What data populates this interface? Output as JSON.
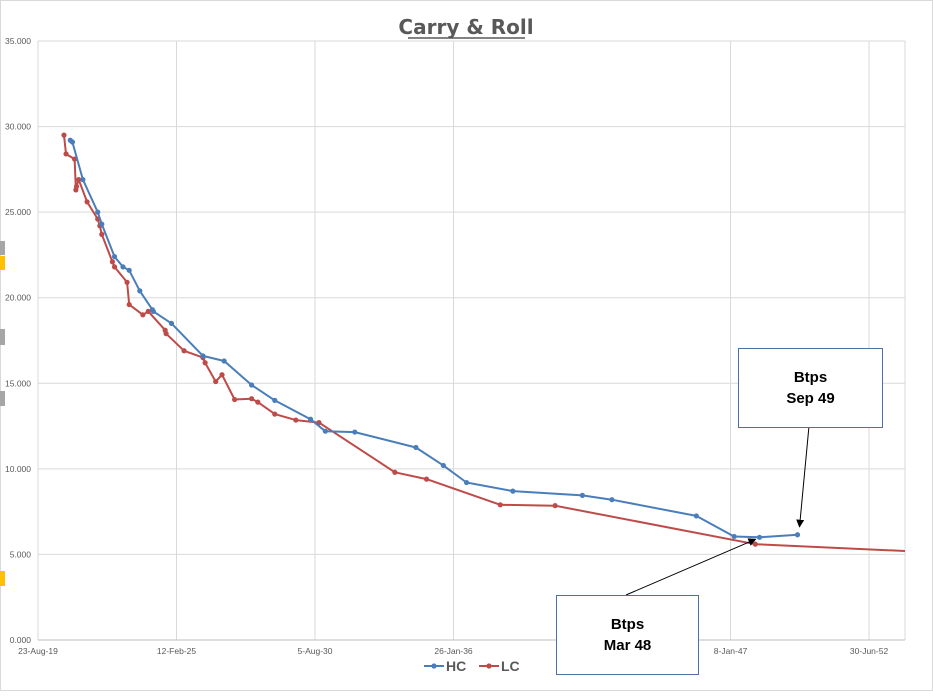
{
  "chart_data": {
    "type": "line",
    "title": "Carry & Roll",
    "xlabel": "",
    "ylabel": "",
    "x_axis_type": "date",
    "xlim": [
      "2019-08-23",
      "2053-12-01"
    ],
    "ylim": [
      0,
      35
    ],
    "x_tick_labels": [
      "23-Aug-19",
      "12-Feb-25",
      "5-Aug-30",
      "26-Jan-36",
      "8-Jan-47",
      "30-Jun-52"
    ],
    "x_tick_dates": [
      "2019-08-23",
      "2025-02-12",
      "2030-08-05",
      "2036-01-26",
      "2047-01-08",
      "2052-06-30"
    ],
    "y_tick_labels": [
      "0.000",
      "5.000",
      "10.000",
      "15.000",
      "20.000",
      "25.000",
      "30.000",
      "35.000"
    ],
    "y_ticks": [
      0,
      5,
      10,
      15,
      20,
      25,
      30,
      35
    ],
    "grid": true,
    "legend": "bottom",
    "series": [
      {
        "name": "HC",
        "color": "#4a7ebb",
        "points": [
          [
            "2020-12-01",
            29.2
          ],
          [
            "2021-01-01",
            29.1
          ],
          [
            "2021-06-01",
            26.9
          ],
          [
            "2022-01-01",
            25.0
          ],
          [
            "2022-03-01",
            24.3
          ],
          [
            "2022-09-01",
            22.4
          ],
          [
            "2023-01-01",
            21.8
          ],
          [
            "2023-04-01",
            21.6
          ],
          [
            "2023-09-01",
            20.4
          ],
          [
            "2024-03-01",
            19.3
          ],
          [
            "2024-03-15",
            19.2
          ],
          [
            "2024-12-01",
            18.5
          ],
          [
            "2026-03-01",
            16.6
          ],
          [
            "2027-01-01",
            16.3
          ],
          [
            "2028-02-01",
            14.9
          ],
          [
            "2029-01-01",
            14.0
          ],
          [
            "2030-06-01",
            12.9
          ],
          [
            "2031-01-01",
            12.2
          ],
          [
            "2032-03-01",
            12.15
          ],
          [
            "2034-08-01",
            11.25
          ],
          [
            "2035-09-01",
            10.2
          ],
          [
            "2036-08-01",
            9.2
          ],
          [
            "2038-06-01",
            8.7
          ],
          [
            "2041-03-01",
            8.45
          ],
          [
            "2042-05-01",
            8.2
          ],
          [
            "2045-09-01",
            7.25
          ],
          [
            "2047-03-01",
            6.05
          ],
          [
            "2048-03-01",
            6.0
          ],
          [
            "2049-09-01",
            6.15
          ]
        ]
      },
      {
        "name": "LC",
        "color": "#be4b48",
        "points": [
          [
            "2020-09-01",
            29.5
          ],
          [
            "2020-10-01",
            28.4
          ],
          [
            "2021-02-01",
            28.1
          ],
          [
            "2021-02-20",
            26.3
          ],
          [
            "2021-03-01",
            26.5
          ],
          [
            "2021-04-01",
            26.9
          ],
          [
            "2021-08-01",
            25.6
          ],
          [
            "2022-01-01",
            24.6
          ],
          [
            "2022-02-01",
            24.2
          ],
          [
            "2022-03-01",
            23.7
          ],
          [
            "2022-08-01",
            22.1
          ],
          [
            "2022-09-01",
            21.8
          ],
          [
            "2023-03-01",
            20.9
          ],
          [
            "2023-04-01",
            19.6
          ],
          [
            "2023-10-15",
            19.0
          ],
          [
            "2024-01-01",
            19.2
          ],
          [
            "2024-09-01",
            18.1
          ],
          [
            "2024-09-15",
            17.9
          ],
          [
            "2025-06-01",
            16.9
          ],
          [
            "2026-03-01",
            16.5
          ],
          [
            "2026-04-01",
            16.2
          ],
          [
            "2026-09-01",
            15.1
          ],
          [
            "2026-12-01",
            15.5
          ],
          [
            "2027-06-01",
            14.05
          ],
          [
            "2028-02-01",
            14.1
          ],
          [
            "2028-05-01",
            13.9
          ],
          [
            "2029-01-01",
            13.2
          ],
          [
            "2029-11-01",
            12.85
          ],
          [
            "2030-10-01",
            12.7
          ],
          [
            "2033-10-01",
            9.8
          ],
          [
            "2035-01-01",
            9.4
          ],
          [
            "2037-12-01",
            7.9
          ],
          [
            "2040-02-01",
            7.85
          ],
          [
            "2048-01-01",
            5.6
          ],
          [
            "2053-12-01",
            5.2
          ]
        ]
      }
    ],
    "annotations": [
      {
        "line1": "Btps",
        "line2": "Sep 49",
        "target_series": "HC",
        "target_x": "2049-09-01",
        "target_y": 6.15
      },
      {
        "line1": "Btps",
        "line2": "Mar 48",
        "target_series": "HC",
        "target_x": "2048-03-01",
        "target_y": 6.0
      }
    ]
  }
}
